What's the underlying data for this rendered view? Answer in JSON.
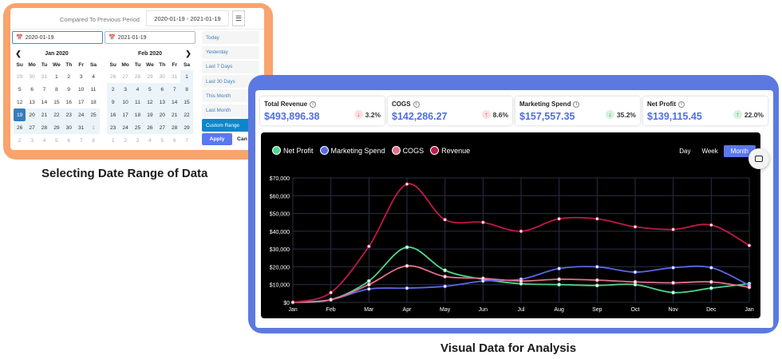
{
  "picker": {
    "compared_label": "Compared To Previous Period",
    "range_value": "2020-01-19 - 2021-01-19",
    "menu_icon": "hamburger-icon",
    "start_date": "2020-01-19",
    "end_date": "2021-01-19",
    "calendar_icon": "calendar-icon",
    "left_month": "Jan 2020",
    "right_month": "Feb 2020",
    "weekdays": [
      "Su",
      "Mo",
      "Tu",
      "We",
      "Th",
      "Fr",
      "Sa"
    ],
    "left_days": [
      [
        "29",
        "30",
        "31",
        "1",
        "2",
        "3",
        "4"
      ],
      [
        "5",
        "6",
        "7",
        "8",
        "9",
        "10",
        "11"
      ],
      [
        "12",
        "13",
        "14",
        "15",
        "16",
        "17",
        "18"
      ],
      [
        "19",
        "20",
        "21",
        "22",
        "23",
        "24",
        "25"
      ],
      [
        "26",
        "27",
        "28",
        "29",
        "30",
        "31",
        "1"
      ],
      [
        "2",
        "3",
        "4",
        "5",
        "6",
        "7",
        "8"
      ]
    ],
    "right_days": [
      [
        "26",
        "27",
        "28",
        "29",
        "30",
        "31",
        "1"
      ],
      [
        "2",
        "3",
        "4",
        "5",
        "6",
        "7",
        "8"
      ],
      [
        "9",
        "10",
        "11",
        "12",
        "13",
        "14",
        "15"
      ],
      [
        "16",
        "17",
        "18",
        "19",
        "20",
        "21",
        "22"
      ],
      [
        "23",
        "24",
        "25",
        "26",
        "27",
        "28",
        "29"
      ],
      [
        "1",
        "2",
        "3",
        "4",
        "5",
        "6",
        "7"
      ]
    ],
    "ranges": [
      "Today",
      "Yesterday",
      "Last 7 Days",
      "Last 30 Days",
      "This Month",
      "Last Month",
      "Custom Range"
    ],
    "active_range": "Custom Range",
    "apply_label": "Apply",
    "cancel_label": "Can"
  },
  "captions": {
    "left": "Selecting Date Range of Data",
    "right": "Visual Data for Analysis"
  },
  "kpis": [
    {
      "title": "Total Revenue",
      "value": "$493,896.38",
      "delta": "3.2%",
      "direction": "down",
      "tone": "red"
    },
    {
      "title": "COGS",
      "value": "$142,286.27",
      "delta": "8.6%",
      "direction": "up",
      "tone": "red"
    },
    {
      "title": "Marketing Spend",
      "value": "$157,557.35",
      "delta": "35.2%",
      "direction": "down",
      "tone": "green"
    },
    {
      "title": "Net Profit",
      "value": "$139,115.45",
      "delta": "22.0%",
      "direction": "up",
      "tone": "green"
    }
  ],
  "period_tabs": [
    "Day",
    "Week",
    "Month"
  ],
  "active_period": "Month",
  "colors": {
    "net_profit": "#4fd68a",
    "marketing_spend": "#5a67e6",
    "cogs": "#e2708a",
    "revenue": "#c0194a",
    "accent": "#5a78f0"
  },
  "chart_data": {
    "type": "line",
    "title": "",
    "xlabel": "",
    "ylabel": "",
    "x": [
      "Jan",
      "Feb",
      "Mar",
      "Apr",
      "May",
      "Jun",
      "Jul",
      "Aug",
      "Sep",
      "Oct",
      "Nov",
      "Dec",
      "Jan"
    ],
    "yticks": [
      "$0",
      "$10,000",
      "$20,000",
      "$30,000",
      "$40,000",
      "$50,000",
      "$60,000",
      "$70,000"
    ],
    "ylim": [
      0,
      70000
    ],
    "grid": true,
    "legend_position": "top-left",
    "series": [
      {
        "name": "Net Profit",
        "color": "#4fd68a",
        "values": [
          0,
          1500,
          12000,
          31000,
          18000,
          13000,
          10500,
          10000,
          9500,
          10000,
          5500,
          8000,
          10500
        ]
      },
      {
        "name": "Marketing Spend",
        "color": "#5a67e6",
        "values": [
          0,
          1500,
          7500,
          8000,
          9000,
          12000,
          13000,
          19000,
          20000,
          17000,
          19500,
          19500,
          9500
        ]
      },
      {
        "name": "COGS",
        "color": "#e2708a",
        "values": [
          0,
          1500,
          10000,
          20500,
          14500,
          13500,
          12000,
          13000,
          12500,
          11500,
          11000,
          11500,
          8500
        ]
      },
      {
        "name": "Revenue",
        "color": "#c0194a",
        "values": [
          0,
          5500,
          31500,
          66500,
          46500,
          45000,
          40000,
          47000,
          47000,
          42500,
          41000,
          43500,
          32000
        ]
      }
    ]
  }
}
